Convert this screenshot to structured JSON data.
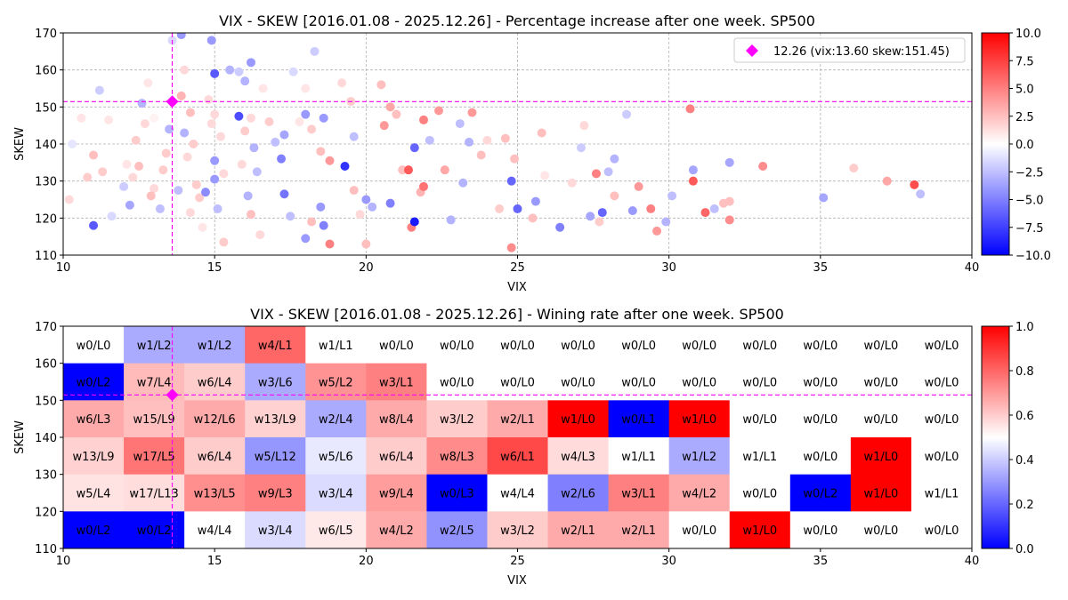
{
  "chart_data": [
    {
      "type": "scatter",
      "title": "VIX - SKEW [2016.01.08 - 2025.12.26]  - Percentage increase after one week. SP500",
      "xlabel": "VIX",
      "ylabel": "SKEW",
      "xlim": [
        10,
        40
      ],
      "ylim": [
        110,
        170
      ],
      "x_ticks": [
        "10",
        "15",
        "20",
        "25",
        "30",
        "35",
        "40"
      ],
      "y_ticks": [
        "110",
        "120",
        "130",
        "140",
        "150",
        "160",
        "170"
      ],
      "grid": true,
      "colormap": "bwr",
      "colorbar": {
        "min": -10,
        "max": 10,
        "ticks": [
          "10.0",
          "7.5",
          "5.0",
          "2.5",
          "0.0",
          "−2.5",
          "−5.0",
          "−7.5",
          "−10.0"
        ]
      },
      "highlight": {
        "label": "12.26 (vix:13.60 skew:151.45)",
        "x": 13.6,
        "y": 151.45,
        "color": "#ff00ff",
        "marker": "diamond"
      },
      "legend_position": "top-right",
      "points": [
        [
          11.0,
          118.0,
          -6.5
        ],
        [
          11.2,
          154.5,
          -2.0
        ],
        [
          11.5,
          146.5,
          1.0
        ],
        [
          11.0,
          137.0,
          2.5
        ],
        [
          11.3,
          132.5,
          2.0
        ],
        [
          10.6,
          147.0,
          1.0
        ],
        [
          10.2,
          125.0,
          1.5
        ],
        [
          10.8,
          131.0,
          2.0
        ],
        [
          10.3,
          140.0,
          -1.0
        ],
        [
          11.6,
          120.5,
          -1.5
        ],
        [
          12.0,
          128.5,
          -2.0
        ],
        [
          12.2,
          123.5,
          -3.5
        ],
        [
          12.6,
          151.0,
          -3.0
        ],
        [
          12.4,
          141.0,
          2.0
        ],
        [
          12.1,
          134.5,
          1.0
        ],
        [
          12.7,
          145.5,
          1.5
        ],
        [
          13.0,
          128.0,
          1.5
        ],
        [
          13.2,
          122.5,
          -2.5
        ],
        [
          12.8,
          156.5,
          1.0
        ],
        [
          13.4,
          137.5,
          2.0
        ],
        [
          13.6,
          168.0,
          -1.5
        ],
        [
          13.0,
          147.0,
          0.5
        ],
        [
          13.5,
          144.0,
          -3.0
        ],
        [
          12.3,
          131.0,
          1.5
        ],
        [
          12.9,
          126.0,
          2.5
        ],
        [
          12.5,
          134.0,
          2.5
        ],
        [
          13.3,
          133.0,
          2.0
        ],
        [
          13.8,
          127.5,
          -2.5
        ],
        [
          13.9,
          169.5,
          -4.0
        ],
        [
          14.0,
          160.0,
          1.5
        ],
        [
          13.9,
          153.0,
          3.0
        ],
        [
          14.2,
          148.5,
          2.5
        ],
        [
          14.0,
          143.0,
          -3.0
        ],
        [
          14.3,
          140.0,
          2.0
        ],
        [
          14.1,
          136.5,
          1.5
        ],
        [
          14.4,
          129.0,
          2.0
        ],
        [
          14.5,
          125.5,
          2.0
        ],
        [
          14.2,
          121.5,
          1.5
        ],
        [
          14.6,
          117.5,
          1.0
        ],
        [
          14.9,
          168.0,
          -4.0
        ],
        [
          15.0,
          159.0,
          -6.5
        ],
        [
          14.8,
          152.0,
          1.5
        ],
        [
          15.0,
          148.0,
          1.5
        ],
        [
          14.9,
          145.5,
          1.5
        ],
        [
          15.2,
          142.0,
          1.5
        ],
        [
          15.0,
          135.5,
          -4.0
        ],
        [
          15.3,
          132.0,
          1.5
        ],
        [
          15.0,
          130.5,
          -4.0
        ],
        [
          14.7,
          127.0,
          -4.5
        ],
        [
          15.1,
          122.5,
          -2.5
        ],
        [
          15.3,
          113.5,
          2.0
        ],
        [
          15.5,
          160.0,
          -3.0
        ],
        [
          15.8,
          159.5,
          -2.0
        ],
        [
          16.0,
          157.0,
          -3.0
        ],
        [
          15.8,
          147.5,
          -7.0
        ],
        [
          16.2,
          147.0,
          1.5
        ],
        [
          16.0,
          143.5,
          2.0
        ],
        [
          16.3,
          139.0,
          -3.0
        ],
        [
          15.9,
          134.5,
          1.5
        ],
        [
          16.1,
          126.0,
          -3.0
        ],
        [
          16.2,
          121.0,
          2.5
        ],
        [
          16.5,
          115.5,
          1.5
        ],
        [
          16.2,
          162.0,
          -4.0
        ],
        [
          16.6,
          155.0,
          1.0
        ],
        [
          16.8,
          146.0,
          2.0
        ],
        [
          16.4,
          132.5,
          -2.5
        ],
        [
          17.0,
          140.5,
          -2.5
        ],
        [
          17.3,
          142.5,
          -3.5
        ],
        [
          17.2,
          136.0,
          -5.0
        ],
        [
          17.3,
          126.5,
          -5.5
        ],
        [
          17.5,
          120.5,
          -2.5
        ],
        [
          17.6,
          159.5,
          -1.5
        ],
        [
          17.8,
          146.0,
          1.0
        ],
        [
          18.0,
          148.0,
          -4.0
        ],
        [
          18.2,
          144.0,
          2.0
        ],
        [
          18.0,
          155.0,
          1.0
        ],
        [
          18.5,
          138.0,
          2.5
        ],
        [
          18.8,
          135.5,
          4.0
        ],
        [
          18.6,
          147.0,
          -4.0
        ],
        [
          18.3,
          165.0,
          -2.0
        ],
        [
          18.5,
          123.0,
          -4.0
        ],
        [
          18.2,
          119.0,
          2.5
        ],
        [
          18.0,
          114.5,
          -4.0
        ],
        [
          18.8,
          113.0,
          5.0
        ],
        [
          18.6,
          118.0,
          -5.0
        ],
        [
          19.2,
          156.5,
          1.5
        ],
        [
          19.5,
          151.5,
          2.0
        ],
        [
          19.6,
          142.0,
          -2.5
        ],
        [
          19.3,
          134.0,
          -8.0
        ],
        [
          19.6,
          127.5,
          2.5
        ],
        [
          19.8,
          121.0,
          1.5
        ],
        [
          20.0,
          125.0,
          -4.0
        ],
        [
          20.2,
          123.0,
          -3.0
        ],
        [
          20.0,
          113.0,
          2.5
        ],
        [
          20.5,
          156.0,
          2.5
        ],
        [
          20.8,
          150.0,
          3.5
        ],
        [
          20.6,
          145.0,
          4.0
        ],
        [
          21.0,
          148.0,
          2.5
        ],
        [
          20.8,
          124.0,
          -5.0
        ],
        [
          21.2,
          133.0,
          2.5
        ],
        [
          21.4,
          133.0,
          6.5
        ],
        [
          21.5,
          117.5,
          5.0
        ],
        [
          21.6,
          119.0,
          -9.0
        ],
        [
          21.6,
          139.0,
          -6.0
        ],
        [
          21.8,
          127.0,
          3.0
        ],
        [
          21.9,
          146.5,
          5.0
        ],
        [
          21.9,
          128.5,
          5.5
        ],
        [
          22.1,
          141.0,
          -2.5
        ],
        [
          22.4,
          149.0,
          4.0
        ],
        [
          22.6,
          133.0,
          3.5
        ],
        [
          22.8,
          119.5,
          -3.0
        ],
        [
          23.1,
          145.5,
          -2.5
        ],
        [
          23.2,
          129.5,
          -3.0
        ],
        [
          23.4,
          140.5,
          -3.0
        ],
        [
          23.5,
          148.5,
          4.0
        ],
        [
          23.8,
          137.0,
          2.5
        ],
        [
          24.0,
          141.0,
          1.5
        ],
        [
          24.4,
          122.5,
          2.0
        ],
        [
          24.6,
          141.5,
          2.5
        ],
        [
          24.8,
          130.0,
          -6.0
        ],
        [
          24.9,
          136.0,
          2.5
        ],
        [
          25.0,
          122.5,
          -6.0
        ],
        [
          24.8,
          112.0,
          4.5
        ],
        [
          25.5,
          120.0,
          2.5
        ],
        [
          25.6,
          124.5,
          -4.0
        ],
        [
          25.8,
          143.0,
          2.5
        ],
        [
          25.9,
          131.5,
          1.0
        ],
        [
          26.4,
          117.5,
          -5.0
        ],
        [
          26.8,
          129.5,
          1.5
        ],
        [
          27.1,
          139.0,
          -2.0
        ],
        [
          27.2,
          145.0,
          1.5
        ],
        [
          27.4,
          120.5,
          -3.5
        ],
        [
          27.6,
          132.0,
          5.0
        ],
        [
          27.8,
          121.5,
          -6.0
        ],
        [
          27.7,
          119.0,
          2.0
        ],
        [
          28.0,
          132.5,
          -2.5
        ],
        [
          28.2,
          136.0,
          -3.0
        ],
        [
          28.2,
          126.0,
          2.5
        ],
        [
          28.6,
          148.0,
          -2.0
        ],
        [
          28.8,
          122.0,
          -4.0
        ],
        [
          29.0,
          128.5,
          4.0
        ],
        [
          29.4,
          122.5,
          5.0
        ],
        [
          29.6,
          116.5,
          4.0
        ],
        [
          29.9,
          119.0,
          -3.0
        ],
        [
          30.1,
          126.0,
          -2.5
        ],
        [
          30.7,
          149.5,
          5.0
        ],
        [
          30.8,
          133.0,
          -3.5
        ],
        [
          30.8,
          130.0,
          6.5
        ],
        [
          31.2,
          121.5,
          6.0
        ],
        [
          31.5,
          122.5,
          -2.5
        ],
        [
          31.8,
          124.0,
          2.5
        ],
        [
          32.0,
          124.5,
          2.5
        ],
        [
          32.0,
          135.0,
          -3.5
        ],
        [
          32.0,
          119.5,
          4.5
        ],
        [
          33.1,
          134.0,
          4.5
        ],
        [
          35.1,
          125.5,
          -3.5
        ],
        [
          36.1,
          133.5,
          2.0
        ],
        [
          37.2,
          130.0,
          3.5
        ],
        [
          38.1,
          129.0,
          7.0
        ],
        [
          38.3,
          126.5,
          -2.5
        ]
      ]
    },
    {
      "type": "heatmap",
      "title": "VIX - SKEW [2016.01.08 - 2025.12.26]  - Wining rate after one week. SP500",
      "xlabel": "VIX",
      "ylabel": "SKEW",
      "xlim": [
        10,
        40
      ],
      "ylim": [
        110,
        170
      ],
      "x_ticks": [
        "10",
        "15",
        "20",
        "25",
        "30",
        "35",
        "40"
      ],
      "y_ticks": [
        "110",
        "120",
        "130",
        "140",
        "150",
        "160",
        "170"
      ],
      "x_bins": [
        10,
        12,
        14,
        16,
        18,
        20,
        22,
        24,
        26,
        28,
        30,
        32,
        34,
        36,
        38,
        40
      ],
      "y_bins": [
        170,
        160,
        150,
        140,
        130,
        120,
        110
      ],
      "colormap": "bwr",
      "colorbar": {
        "min": 0,
        "max": 1,
        "ticks": [
          "1.0",
          "0.8",
          "0.6",
          "0.4",
          "0.2",
          "0.0"
        ]
      },
      "highlight": {
        "x": 13.6,
        "y": 151.45,
        "color": "#ff00ff",
        "marker": "diamond"
      },
      "rows": [
        {
          "skew_range": [
            160,
            170
          ],
          "labels": [
            "w0/L0",
            "w1/L2",
            "w1/L2",
            "w4/L1",
            "w1/L1",
            "w0/L0",
            "w0/L0",
            "w0/L0",
            "w0/L0",
            "w0/L0",
            "w0/L0",
            "w0/L0",
            "w0/L0",
            "w0/L0",
            "w0/L0"
          ],
          "rates": [
            0.5,
            0.333,
            0.333,
            0.8,
            0.5,
            0.5,
            0.5,
            0.5,
            0.5,
            0.5,
            0.5,
            0.5,
            0.5,
            0.5,
            0.5
          ]
        },
        {
          "skew_range": [
            150,
            160
          ],
          "labels": [
            "w0/L2",
            "w7/L4",
            "w6/L4",
            "w3/L6",
            "w5/L2",
            "w3/L1",
            "w0/L0",
            "w0/L0",
            "w0/L0",
            "w0/L0",
            "w0/L0",
            "w0/L0",
            "w0/L0",
            "w0/L0",
            "w0/L0"
          ],
          "rates": [
            0.0,
            0.636,
            0.6,
            0.333,
            0.714,
            0.75,
            0.5,
            0.5,
            0.5,
            0.5,
            0.5,
            0.5,
            0.5,
            0.5,
            0.5
          ]
        },
        {
          "skew_range": [
            140,
            150
          ],
          "labels": [
            "w6/L3",
            "w15/L9",
            "w12/L6",
            "w13/L9",
            "w2/L4",
            "w8/L4",
            "w3/L2",
            "w2/L1",
            "w1/L0",
            "w0/L1",
            "w1/L0",
            "w0/L0",
            "w0/L0",
            "w0/L0",
            "w0/L0"
          ],
          "rates": [
            0.667,
            0.625,
            0.667,
            0.591,
            0.333,
            0.667,
            0.6,
            0.667,
            1.0,
            0.0,
            1.0,
            0.5,
            0.5,
            0.5,
            0.5
          ]
        },
        {
          "skew_range": [
            130,
            140
          ],
          "labels": [
            "w13/L9",
            "w17/L5",
            "w6/L4",
            "w5/L12",
            "w5/L6",
            "w6/L4",
            "w8/L3",
            "w6/L1",
            "w4/L3",
            "w1/L1",
            "w1/L2",
            "w1/L1",
            "w0/L0",
            "w1/L0",
            "w0/L0"
          ],
          "rates": [
            0.591,
            0.773,
            0.6,
            0.294,
            0.455,
            0.6,
            0.727,
            0.857,
            0.571,
            0.5,
            0.333,
            0.5,
            0.5,
            1.0,
            0.5
          ]
        },
        {
          "skew_range": [
            120,
            130
          ],
          "labels": [
            "w5/L4",
            "w17/L13",
            "w13/L5",
            "w9/L3",
            "w3/L4",
            "w9/L4",
            "w0/L3",
            "w4/L4",
            "w2/L6",
            "w3/L1",
            "w4/L2",
            "w0/L0",
            "w0/L2",
            "w1/L0",
            "w1/L1"
          ],
          "rates": [
            0.556,
            0.567,
            0.722,
            0.75,
            0.429,
            0.692,
            0.0,
            0.5,
            0.25,
            0.75,
            0.667,
            0.5,
            0.0,
            1.0,
            0.5
          ]
        },
        {
          "skew_range": [
            110,
            120
          ],
          "labels": [
            "w0/L2",
            "w0/L2",
            "w4/L4",
            "w3/L4",
            "w6/L5",
            "w4/L2",
            "w2/L5",
            "w3/L2",
            "w2/L1",
            "w2/L1",
            "w0/L0",
            "w1/L0",
            "w0/L0",
            "w0/L0",
            "w0/L0"
          ],
          "rates": [
            0.0,
            0.0,
            0.5,
            0.429,
            0.545,
            0.667,
            0.286,
            0.6,
            0.667,
            0.667,
            0.5,
            1.0,
            0.5,
            0.5,
            0.5
          ]
        }
      ]
    }
  ]
}
